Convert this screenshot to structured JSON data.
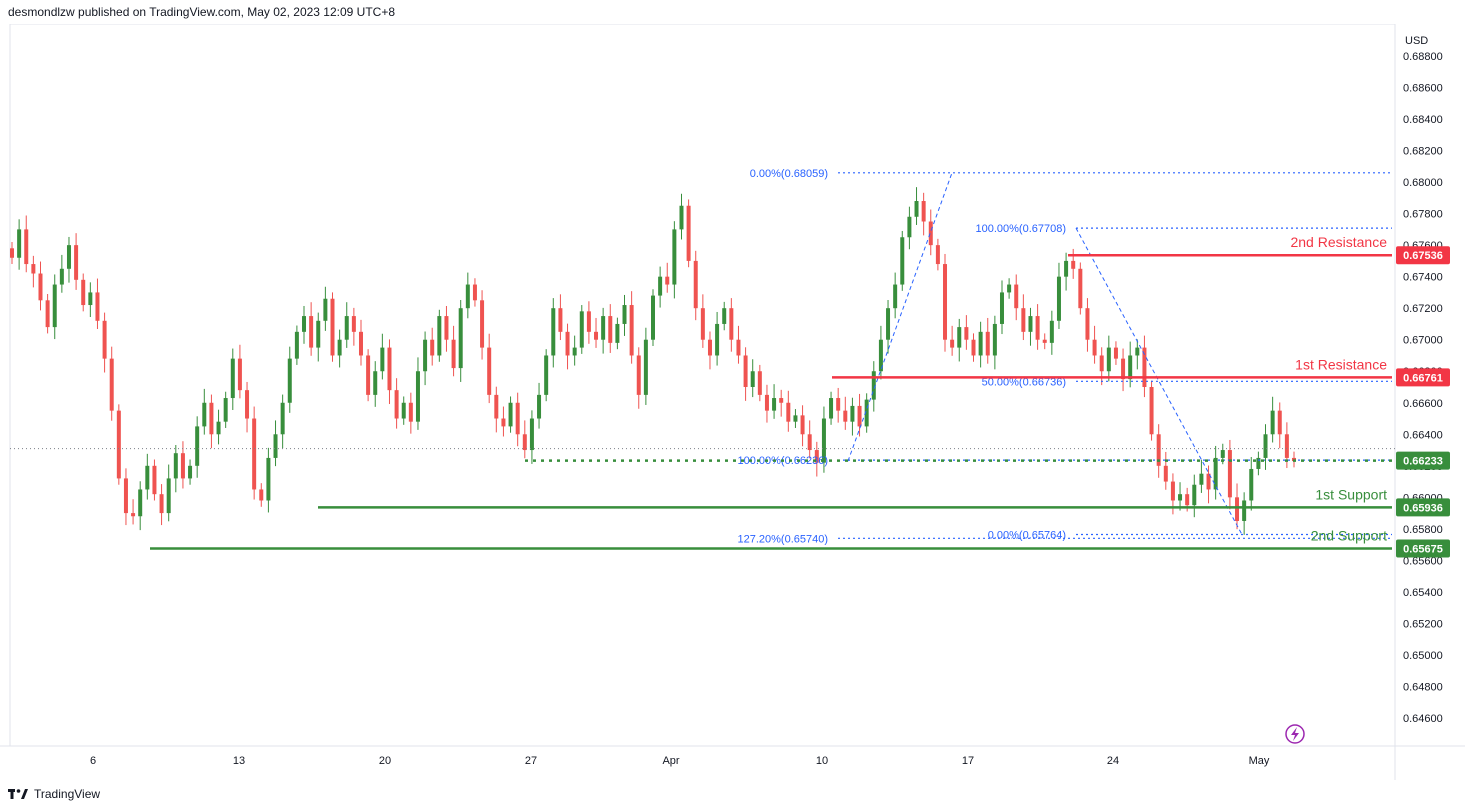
{
  "header": {
    "published_by": "desmondlzw published on TradingView.com, May 02, 2023 12:09 UTC+8"
  },
  "footer": {
    "brand": "TradingView"
  },
  "colors": {
    "up": "#388e3c",
    "down": "#ef5350",
    "resistance": "#f23645",
    "support": "#388e3c",
    "fib": "#2962ff",
    "fib_text": "#2962ff",
    "grid": "#e0e3eb",
    "price_dotted": "#7b7f87"
  },
  "chart_data": {
    "type": "candlestick",
    "currency": "USD",
    "y_ticks": [
      "0.68800",
      "0.68600",
      "0.68400",
      "0.68200",
      "0.68000",
      "0.67800",
      "0.67600",
      "0.67400",
      "0.67200",
      "0.67000",
      "0.66800",
      "0.66600",
      "0.66400",
      "0.66200",
      "0.66000",
      "0.65800",
      "0.65600",
      "0.65400",
      "0.65200",
      "0.65000",
      "0.64800",
      "0.64600"
    ],
    "x_ticks": [
      "6",
      "13",
      "20",
      "27",
      "Apr",
      "10",
      "17",
      "24",
      "May"
    ],
    "resistance": [
      {
        "label": "2nd Resistance",
        "value": 0.67536,
        "price_label": "0.67536"
      },
      {
        "label": "1st Resistance",
        "value": 0.66761,
        "price_label": "0.66761"
      }
    ],
    "support": [
      {
        "label": "1st Support",
        "value": 0.65936,
        "price_label": "0.65936"
      },
      {
        "label": "2nd Support",
        "value": 0.65675,
        "price_label": "0.65675"
      }
    ],
    "current": {
      "value": 0.66233,
      "price_label": "0.66233"
    },
    "fib_labels": [
      {
        "text": "0.00%(0.68059)",
        "value": 0.68059
      },
      {
        "text": "100.00%(0.67708)",
        "value": 0.67708
      },
      {
        "text": "50.00%(0.66736)",
        "value": 0.66736
      },
      {
        "text": "100.00%(0.66236)",
        "value": 0.66236
      },
      {
        "text": "127.20%(0.65740)",
        "value": 0.6574
      },
      {
        "text": "0.00%(0.65764)",
        "value": 0.65764
      }
    ],
    "y_range": [
      0.6444,
      0.6895
    ],
    "candles_note": "approximate daily-ish candles read from chart",
    "closes": [
      0.6752,
      0.677,
      0.6748,
      0.6742,
      0.6725,
      0.6708,
      0.6735,
      0.6745,
      0.676,
      0.6738,
      0.6722,
      0.673,
      0.6712,
      0.6688,
      0.6655,
      0.6612,
      0.659,
      0.6588,
      0.6605,
      0.662,
      0.6602,
      0.659,
      0.6612,
      0.6628,
      0.6612,
      0.662,
      0.6645,
      0.666,
      0.664,
      0.6648,
      0.6663,
      0.6688,
      0.6668,
      0.665,
      0.6605,
      0.6598,
      0.6625,
      0.664,
      0.666,
      0.6688,
      0.6705,
      0.6715,
      0.6695,
      0.6712,
      0.6726,
      0.669,
      0.67,
      0.6715,
      0.6705,
      0.669,
      0.6665,
      0.668,
      0.6695,
      0.6668,
      0.665,
      0.666,
      0.6648,
      0.668,
      0.67,
      0.669,
      0.6715,
      0.67,
      0.6682,
      0.672,
      0.6735,
      0.6725,
      0.6695,
      0.6665,
      0.665,
      0.6645,
      0.666,
      0.664,
      0.663,
      0.665,
      0.6665,
      0.669,
      0.672,
      0.6705,
      0.669,
      0.6695,
      0.6718,
      0.6705,
      0.67,
      0.6715,
      0.6698,
      0.671,
      0.6722,
      0.669,
      0.6665,
      0.67,
      0.6728,
      0.674,
      0.6735,
      0.677,
      0.6785,
      0.675,
      0.672,
      0.67,
      0.669,
      0.671,
      0.672,
      0.67,
      0.669,
      0.667,
      0.668,
      0.6665,
      0.6655,
      0.6663,
      0.666,
      0.6648,
      0.6652,
      0.664,
      0.663,
      0.6622,
      0.665,
      0.6663,
      0.6655,
      0.6648,
      0.6658,
      0.6645,
      0.6662,
      0.668,
      0.67,
      0.672,
      0.6735,
      0.6765,
      0.6778,
      0.6788,
      0.6775,
      0.676,
      0.6748,
      0.67,
      0.6695,
      0.6708,
      0.67,
      0.669,
      0.6705,
      0.669,
      0.671,
      0.673,
      0.6735,
      0.672,
      0.6705,
      0.6715,
      0.67,
      0.6698,
      0.6712,
      0.674,
      0.675,
      0.6745,
      0.672,
      0.67,
      0.669,
      0.668,
      0.6695,
      0.6688,
      0.6675,
      0.669,
      0.6695,
      0.667,
      0.664,
      0.662,
      0.661,
      0.6598,
      0.6602,
      0.6595,
      0.6608,
      0.6615,
      0.6605,
      0.6625,
      0.663,
      0.66,
      0.6585,
      0.6598,
      0.6618,
      0.6625,
      0.664,
      0.6655,
      0.664,
      0.6625,
      0.6623
    ]
  }
}
